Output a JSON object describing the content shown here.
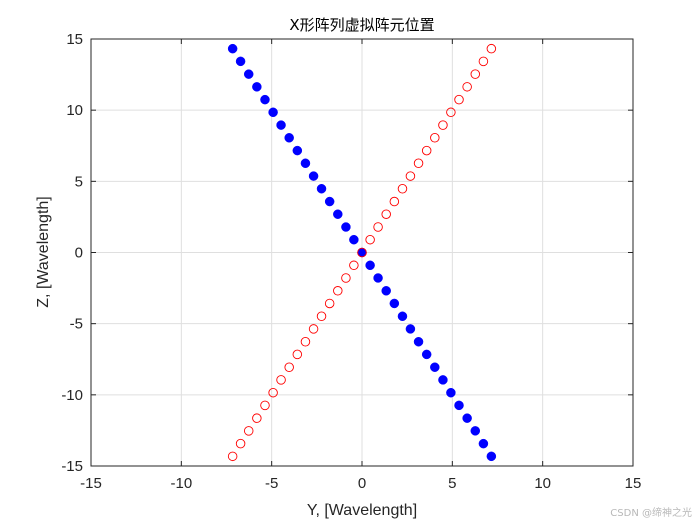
{
  "chart_data": {
    "type": "scatter",
    "title": "X形阵列虚拟阵元位置",
    "xlabel": "Y, [Wavelength]",
    "ylabel": "Z, [Wavelength]",
    "xlim": [
      -15,
      15
    ],
    "ylim": [
      -15,
      15
    ],
    "xticks": [
      -15,
      -10,
      -5,
      0,
      5,
      10,
      15
    ],
    "yticks": [
      -15,
      -10,
      -5,
      0,
      5,
      10,
      15
    ],
    "xtick_labels": [
      "-15",
      "-10",
      "-5",
      "0",
      "5",
      "10",
      "15"
    ],
    "ytick_labels": [
      "-15",
      "-10",
      "-5",
      "0",
      "5",
      "10",
      "15"
    ],
    "grid": true,
    "series": [
      {
        "marker": "filled-circle",
        "color": "#0000ff",
        "x": [
          -7.16,
          -6.72,
          -6.27,
          -5.82,
          -5.37,
          -4.92,
          -4.48,
          -4.03,
          -3.58,
          -3.13,
          -2.68,
          -2.24,
          -1.79,
          -1.34,
          -0.89,
          -0.45,
          0.0,
          0.45,
          0.89,
          1.34,
          1.79,
          2.24,
          2.68,
          3.13,
          3.58,
          4.03,
          4.48,
          4.92,
          5.37,
          5.82,
          6.27,
          6.72,
          7.16
        ],
        "y": [
          14.32,
          13.43,
          12.53,
          11.64,
          10.74,
          9.85,
          8.95,
          8.06,
          7.16,
          6.27,
          5.37,
          4.48,
          3.58,
          2.69,
          1.79,
          0.9,
          0.0,
          -0.9,
          -1.79,
          -2.69,
          -3.58,
          -4.48,
          -5.37,
          -6.27,
          -7.16,
          -8.06,
          -8.95,
          -9.85,
          -10.74,
          -11.64,
          -12.53,
          -13.43,
          -14.32
        ]
      },
      {
        "marker": "open-circle",
        "color": "#ff0000",
        "x": [
          -7.16,
          -6.72,
          -6.27,
          -5.82,
          -5.37,
          -4.92,
          -4.48,
          -4.03,
          -3.58,
          -3.13,
          -2.68,
          -2.24,
          -1.79,
          -1.34,
          -0.89,
          -0.45,
          0.0,
          0.45,
          0.89,
          1.34,
          1.79,
          2.24,
          2.68,
          3.13,
          3.58,
          4.03,
          4.48,
          4.92,
          5.37,
          5.82,
          6.27,
          6.72,
          7.16
        ],
        "y": [
          -14.32,
          -13.43,
          -12.53,
          -11.64,
          -10.74,
          -9.85,
          -8.95,
          -8.06,
          -7.16,
          -6.27,
          -5.37,
          -4.48,
          -3.58,
          -2.69,
          -1.79,
          -0.9,
          0.0,
          0.9,
          1.79,
          2.69,
          3.58,
          4.48,
          5.37,
          6.27,
          7.16,
          8.06,
          8.95,
          9.85,
          10.74,
          11.64,
          12.53,
          13.43,
          14.32
        ]
      }
    ]
  },
  "watermark": "CSDN @缔神之光"
}
